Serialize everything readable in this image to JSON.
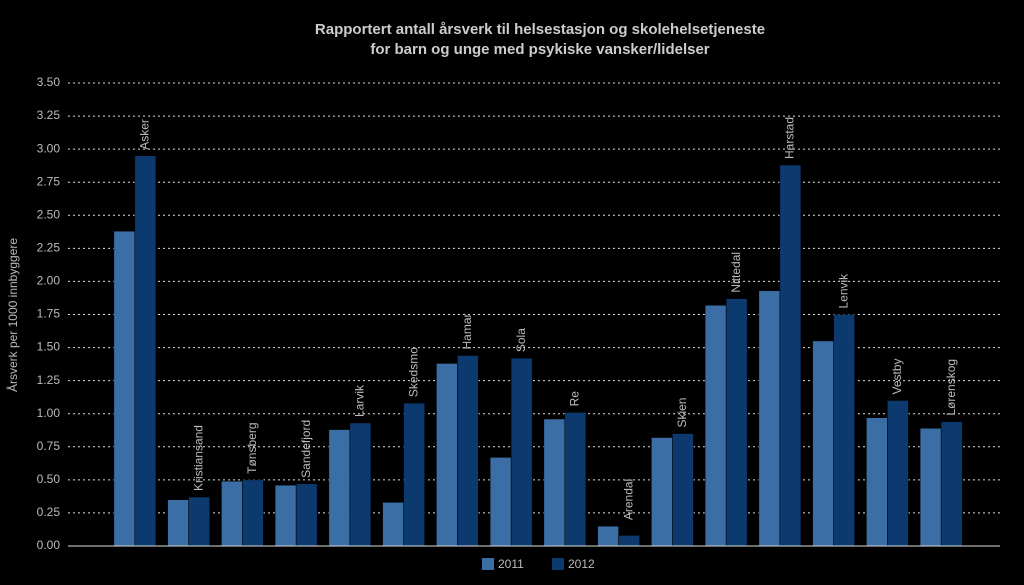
{
  "chart_data": {
    "type": "bar",
    "title": "Rapportert antall årsverk til helsestasjon og skolehelsetjeneste",
    "subtitle": "for barn og unge med psykiske vansker/lidelser",
    "y_label": "Årsverk per 1000 innbyggere",
    "categories": [
      "Asker",
      "Kristiansand",
      "Tønsberg",
      "Sandefjord",
      "Larvik",
      "Skedsmo",
      "Hamar",
      "Sola",
      "Re",
      "Arendal",
      "Skien",
      "Nittedal",
      "Harstad",
      "Lenvik",
      "Vestby",
      "Lørenskog"
    ],
    "series": [
      {
        "name": "2011",
        "color": "#3a6ea5",
        "values": [
          2.38,
          0.35,
          0.49,
          0.46,
          0.88,
          0.33,
          1.38,
          0.67,
          0.96,
          0.15,
          0.82,
          1.82,
          1.93,
          1.55,
          0.97,
          0.89
        ]
      },
      {
        "name": "2012",
        "color": "#0d3a6e",
        "values": [
          2.95,
          0.37,
          0.5,
          0.47,
          0.93,
          1.08,
          1.44,
          1.42,
          1.01,
          0.08,
          0.85,
          1.87,
          2.88,
          1.75,
          1.1,
          0.94
        ]
      }
    ],
    "ylim": [
      0,
      3.5
    ],
    "yticks": [
      {
        "value": 0,
        "label": "0.00"
      },
      {
        "value": 0.25,
        "label": "0.25"
      },
      {
        "value": 0.5,
        "label": "0.50"
      },
      {
        "value": 0.75,
        "label": "0.75"
      },
      {
        "value": 1,
        "label": "1.00"
      },
      {
        "value": 1.25,
        "label": "1.25"
      },
      {
        "value": 1.5,
        "label": "1.50"
      },
      {
        "value": 1.75,
        "label": "1.75"
      },
      {
        "value": 2,
        "label": "2.00"
      },
      {
        "value": 2.25,
        "label": "2.25"
      },
      {
        "value": 2.5,
        "label": "2.50"
      },
      {
        "value": 2.75,
        "label": "2.75"
      },
      {
        "value": 3,
        "label": "3.00"
      },
      {
        "value": 3.25,
        "label": "3.25"
      },
      {
        "value": 3.5,
        "label": "3.50"
      }
    ],
    "grid": true
  }
}
